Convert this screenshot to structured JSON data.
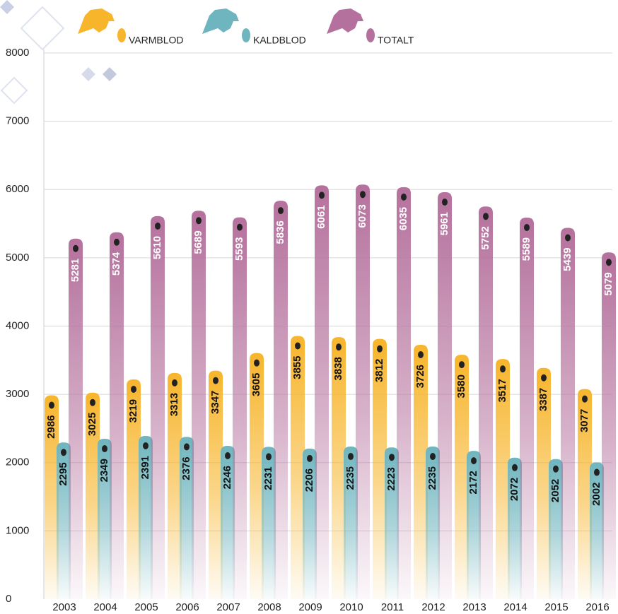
{
  "chart_data": {
    "type": "bar",
    "categories": [
      "2003",
      "2004",
      "2005",
      "2006",
      "2007",
      "2008",
      "2009",
      "2010",
      "2011",
      "2012",
      "2013",
      "2014",
      "2015",
      "2016"
    ],
    "series": [
      {
        "name": "VARMBLOD",
        "color": "#f7b52c",
        "values": [
          2986,
          3025,
          3219,
          3313,
          3347,
          3605,
          3855,
          3838,
          3812,
          3726,
          3580,
          3517,
          3387,
          3077
        ]
      },
      {
        "name": "KALDBLOD",
        "color": "#6fb5bf",
        "values": [
          2295,
          2349,
          2391,
          2376,
          2246,
          2231,
          2206,
          2235,
          2223,
          2235,
          2172,
          2072,
          2052,
          2002
        ]
      },
      {
        "name": "TOTALT",
        "color": "#b5719d",
        "values": [
          5281,
          5374,
          5610,
          5689,
          5593,
          5836,
          6061,
          6073,
          6035,
          5961,
          5752,
          5589,
          5439,
          5079
        ]
      }
    ],
    "ylim": [
      0,
      8000
    ],
    "yticks": [
      0,
      1000,
      2000,
      3000,
      4000,
      5000,
      6000,
      7000,
      8000
    ],
    "grid": true
  }
}
